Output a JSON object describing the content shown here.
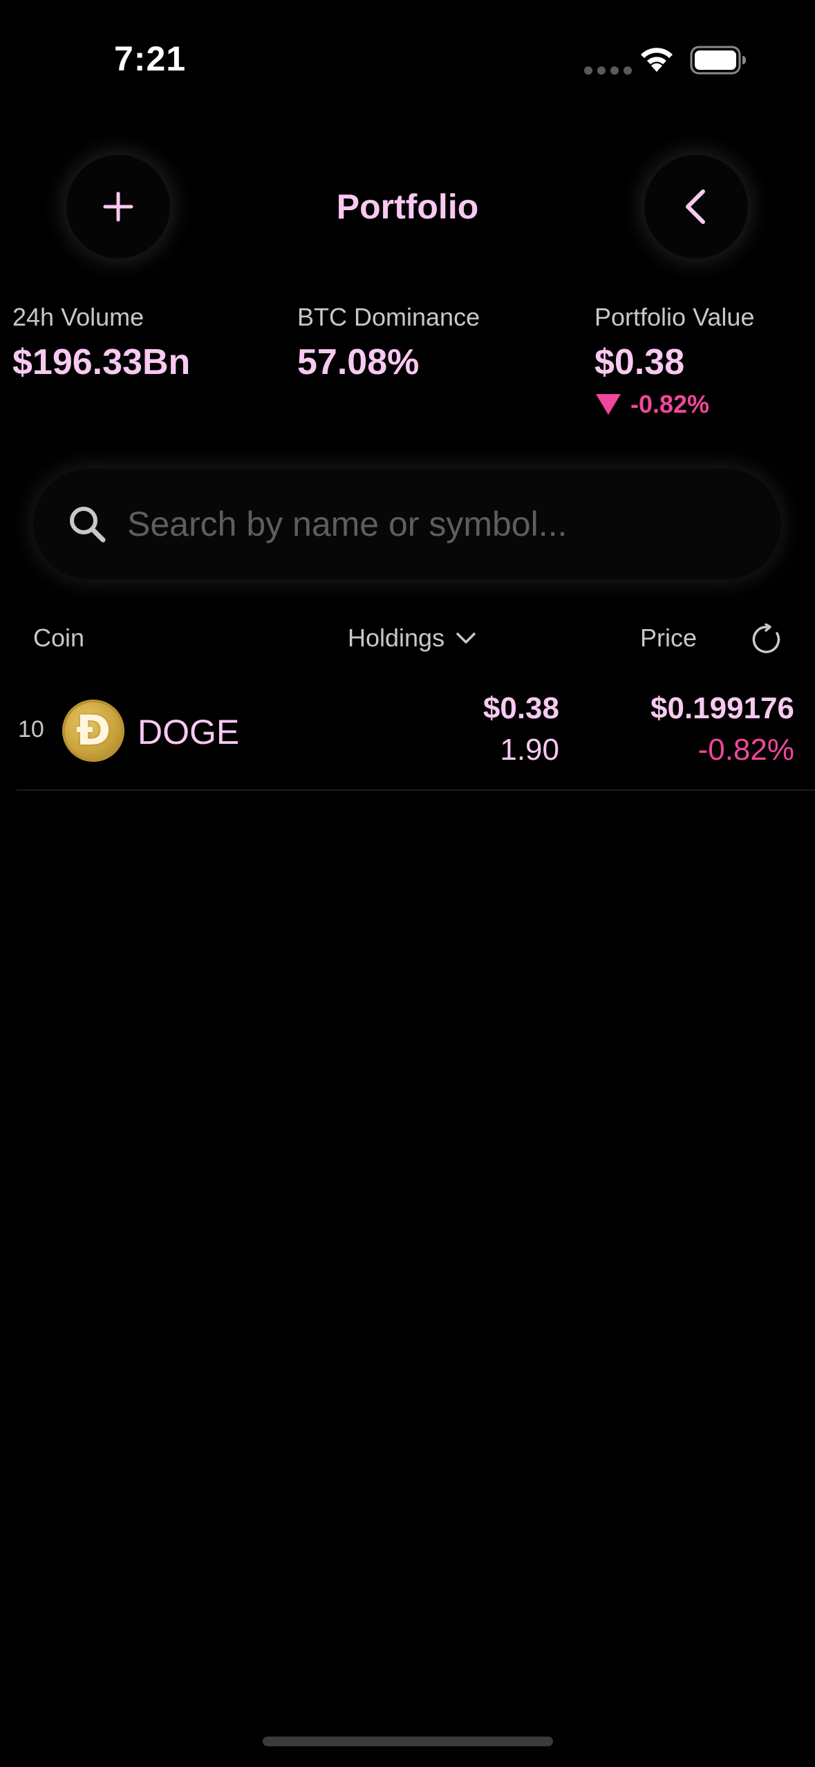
{
  "status_bar": {
    "time": "7:21",
    "icons": [
      "signal-dots-icon",
      "wifi-icon",
      "battery-icon"
    ]
  },
  "header": {
    "title": "Portfolio",
    "left_button_icon": "plus-icon",
    "right_button_icon": "chevron-left-icon"
  },
  "stats": {
    "volume": {
      "label": "24h Volume",
      "value": "$196.33Bn"
    },
    "btc_dominance": {
      "label": "BTC Dominance",
      "value": "57.08%"
    },
    "portfolio_value": {
      "label": "Portfolio Value",
      "value": "$0.38",
      "change": "-0.82%",
      "change_direction_icon": "triangle-down-icon"
    }
  },
  "search": {
    "placeholder": "Search by name or symbol...",
    "value": ""
  },
  "columns": {
    "coin": "Coin",
    "holdings": "Holdings",
    "price": "Price"
  },
  "rows": [
    {
      "rank": "10",
      "symbol": "DOGE",
      "logo_letter": "Đ",
      "holding_value": "$0.38",
      "holding_quantity": "1.90",
      "price": "$0.199176",
      "change": "-0.82%"
    }
  ],
  "colors": {
    "accent": "#f9c9f2",
    "negative": "#f0479b",
    "background": "#000000",
    "label": "#c8c8c8"
  }
}
